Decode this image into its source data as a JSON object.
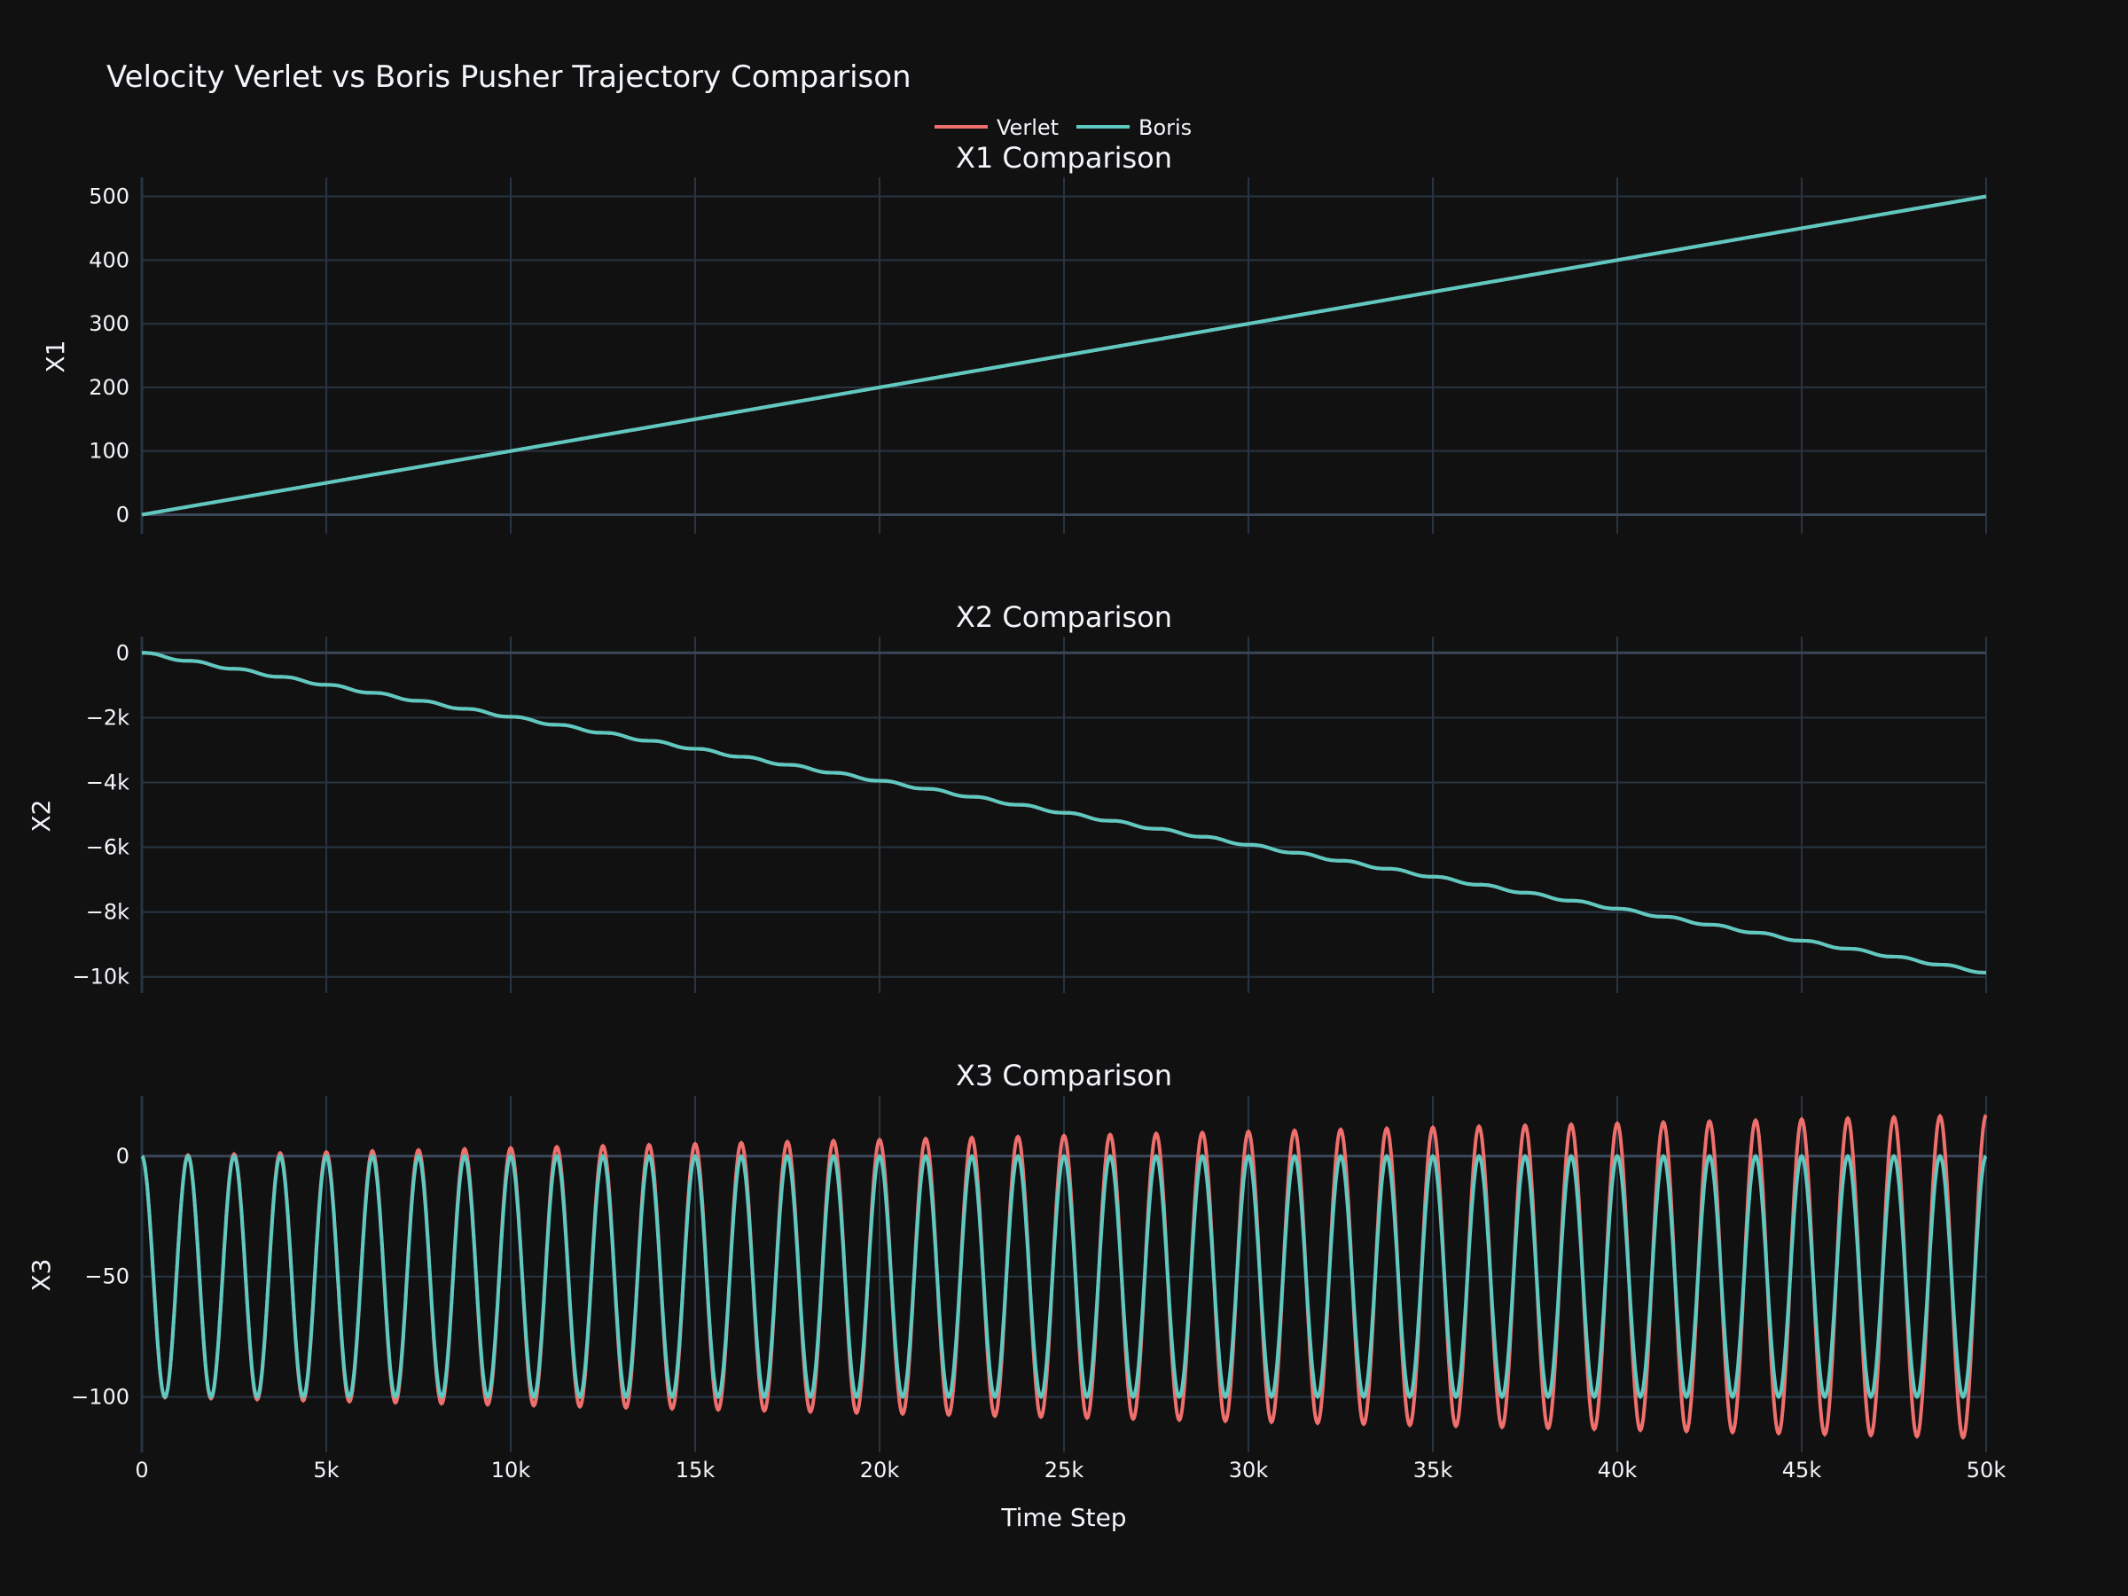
{
  "title": "Velocity Verlet vs Boris Pusher Trajectory Comparison",
  "legend": [
    {
      "name": "Verlet",
      "color": "#EF6F6C"
    },
    {
      "name": "Boris",
      "color": "#5DC9C0"
    }
  ],
  "xaxis": {
    "label": "Time Step",
    "range": [
      0,
      50000
    ],
    "ticks": [
      0,
      5000,
      10000,
      15000,
      20000,
      25000,
      30000,
      35000,
      40000,
      45000,
      50000
    ],
    "tick_labels": [
      "0",
      "5k",
      "10k",
      "15k",
      "20k",
      "25k",
      "30k",
      "35k",
      "40k",
      "45k",
      "50k"
    ]
  },
  "chart_data": [
    {
      "type": "line",
      "title": "X1 Comparison",
      "ylabel": "X1",
      "ylim": [
        -30,
        530
      ],
      "yticks": [
        0,
        100,
        200,
        300,
        400,
        500
      ],
      "ytick_labels": [
        "0",
        "100",
        "200",
        "300",
        "400",
        "500"
      ],
      "x": [
        0,
        50000
      ],
      "series": [
        {
          "name": "Verlet",
          "values": [
            0,
            500
          ]
        },
        {
          "name": "Boris",
          "values": [
            0,
            500
          ]
        }
      ]
    },
    {
      "type": "line",
      "title": "X2 Comparison",
      "ylabel": "X2",
      "ylim": [
        -10500,
        500
      ],
      "yticks": [
        0,
        -2000,
        -4000,
        -6000,
        -8000,
        -10000
      ],
      "ytick_labels": [
        "0",
        "−2k",
        "−4k",
        "−6k",
        "−8k",
        "−10k"
      ],
      "x": [
        0,
        50000
      ],
      "series": [
        {
          "name": "Verlet",
          "values": [
            0,
            -9870
          ],
          "cycles": 40,
          "step_amplitude": 36
        },
        {
          "name": "Boris",
          "values": [
            0,
            -9870
          ],
          "cycles": 40,
          "step_amplitude": 36
        }
      ]
    },
    {
      "type": "line",
      "title": "X3 Comparison",
      "ylabel": "X3",
      "ylim": [
        -123,
        25
      ],
      "yticks": [
        0,
        -50,
        -100
      ],
      "ytick_labels": [
        "0",
        "−50",
        "−100"
      ],
      "x": [
        0,
        50000
      ],
      "series": [
        {
          "name": "Verlet",
          "center": -50,
          "amplitude_start": 50,
          "amplitude_end": 67,
          "cycles": 40
        },
        {
          "name": "Boris",
          "center": -50,
          "amplitude_start": 50,
          "amplitude_end": 50,
          "cycles": 40
        }
      ]
    }
  ]
}
